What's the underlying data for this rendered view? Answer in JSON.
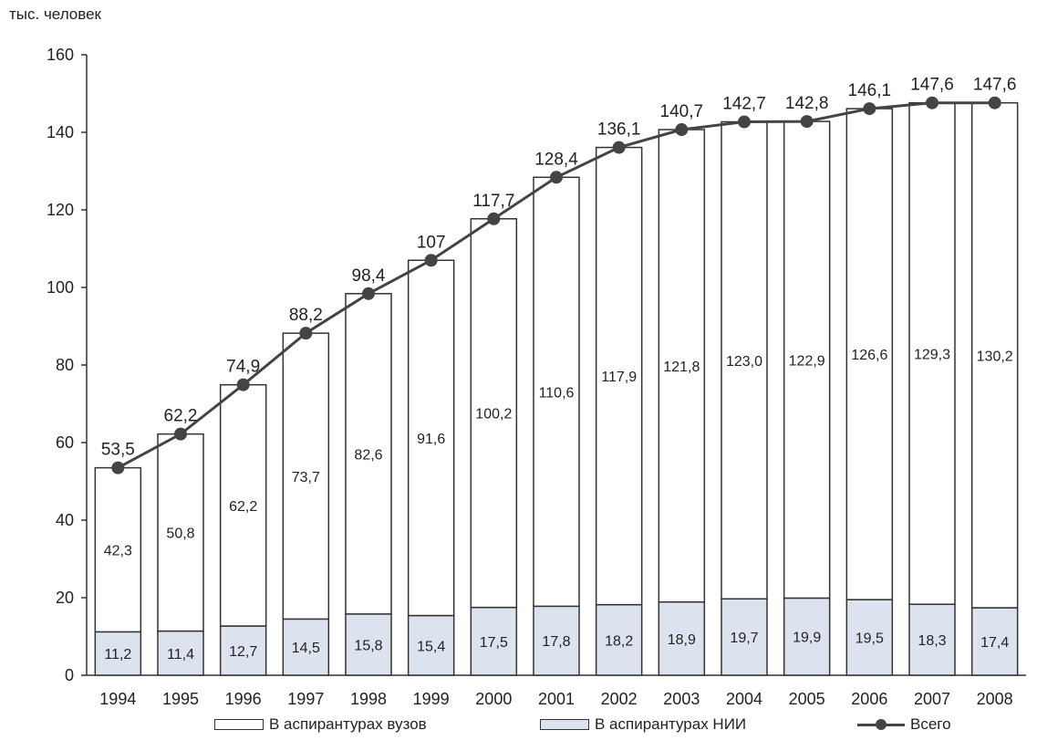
{
  "chart_data": {
    "type": "bar",
    "stacked": true,
    "unit_label": "тыс. человек",
    "categories": [
      "1994",
      "1995",
      "1996",
      "1997",
      "1998",
      "1999",
      "2000",
      "2001",
      "2002",
      "2003",
      "2004",
      "2005",
      "2006",
      "2007",
      "2008"
    ],
    "ylim": [
      0,
      160
    ],
    "yticks": [
      "0",
      "20",
      "40",
      "60",
      "80",
      "100",
      "120",
      "140",
      "160"
    ],
    "series": [
      {
        "name": "В аспирантурах НИИ",
        "type": "bar",
        "color": "#dde3ee",
        "values": [
          11.2,
          11.4,
          12.7,
          14.5,
          15.8,
          15.4,
          17.5,
          17.8,
          18.2,
          18.9,
          19.7,
          19.9,
          19.5,
          18.3,
          17.4
        ],
        "labels": [
          "11,2",
          "11,4",
          "12,7",
          "14,5",
          "15,8",
          "15,4",
          "17,5",
          "17,8",
          "18,2",
          "18,9",
          "19,7",
          "19,9",
          "19,5",
          "18,3",
          "17,4"
        ]
      },
      {
        "name": "В аспирантурах вузов",
        "type": "bar",
        "color": "#ffffff",
        "values": [
          42.3,
          50.8,
          62.2,
          73.7,
          82.6,
          91.6,
          100.2,
          110.6,
          117.9,
          121.8,
          123.0,
          122.9,
          126.6,
          129.3,
          130.2
        ],
        "labels": [
          "42,3",
          "50,8",
          "62,2",
          "73,7",
          "82,6",
          "91,6",
          "100,2",
          "110,6",
          "117,9",
          "121,8",
          "123,0",
          "122,9",
          "126,6",
          "129,3",
          "130,2"
        ]
      },
      {
        "name": "Всего",
        "type": "line",
        "color": "#444444",
        "values": [
          53.5,
          62.2,
          74.9,
          88.2,
          98.4,
          107,
          117.7,
          128.4,
          136.1,
          140.7,
          142.7,
          142.8,
          146.1,
          147.6,
          147.6
        ],
        "labels": [
          "53,5",
          "62,2",
          "74,9",
          "88,2",
          "98,4",
          "107",
          "117,7",
          "128,4",
          "136,1",
          "140,7",
          "142,7",
          "142,8",
          "146,1",
          "147,6",
          "147,6"
        ]
      }
    ],
    "legend": {
      "position": "bottom"
    },
    "grid": false
  }
}
